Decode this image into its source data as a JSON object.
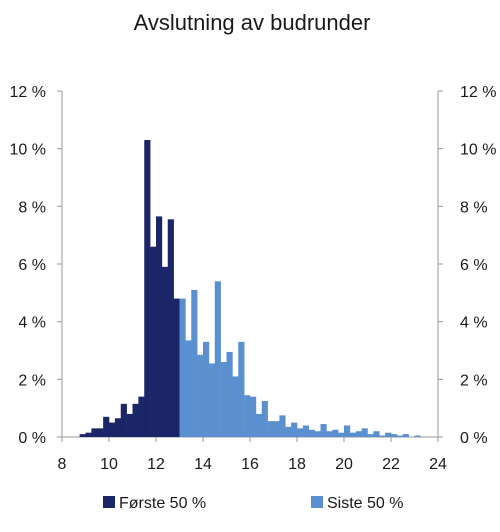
{
  "chart_data": {
    "type": "bar",
    "title": "Avslutning av budrunder",
    "xlabel": "",
    "ylabel": "",
    "xlim": [
      8,
      24
    ],
    "ylim": [
      0,
      12
    ],
    "bin_width": 0.25,
    "grid": false,
    "legend_position": "bottom",
    "x_ticks": [
      "8",
      "10",
      "12",
      "14",
      "16",
      "18",
      "20",
      "22",
      "24"
    ],
    "y_ticks": [
      "0 %",
      "2 %",
      "4 %",
      "6 %",
      "8 %",
      "10 %",
      "12 %"
    ],
    "series": [
      {
        "name": "Første 50 %",
        "color": "#1b2668",
        "x": [
          8.5,
          8.75,
          9.0,
          9.25,
          9.5,
          9.75,
          10.0,
          10.25,
          10.5,
          10.75,
          11.0,
          11.25,
          11.5,
          11.75,
          12.0,
          12.25,
          12.5,
          12.75,
          13.0
        ],
        "values": [
          0.0,
          0.1,
          0.15,
          0.3,
          0.3,
          0.7,
          0.5,
          0.65,
          1.15,
          0.8,
          1.15,
          1.4,
          10.3,
          6.6,
          7.65,
          5.9,
          7.55,
          4.8,
          0.0
        ]
      },
      {
        "name": "Siste 50 %",
        "color": "#5b90d0",
        "x": [
          13.0,
          13.25,
          13.5,
          13.75,
          14.0,
          14.25,
          14.5,
          14.75,
          15.0,
          15.25,
          15.5,
          15.75,
          16.0,
          16.25,
          16.5,
          16.75,
          17.0,
          17.25,
          17.5,
          17.75,
          18.0,
          18.25,
          18.5,
          18.75,
          19.0,
          19.25,
          19.5,
          19.75,
          20.0,
          20.25,
          20.5,
          20.75,
          21.0,
          21.25,
          21.5,
          21.75,
          22.0,
          22.25,
          22.5,
          22.75,
          23.0,
          23.25,
          23.5,
          23.75
        ],
        "values": [
          4.8,
          3.35,
          5.1,
          2.85,
          3.3,
          2.55,
          5.4,
          2.6,
          2.95,
          2.1,
          3.3,
          1.45,
          1.4,
          0.8,
          1.25,
          0.55,
          0.55,
          0.75,
          0.35,
          0.5,
          0.3,
          0.4,
          0.25,
          0.2,
          0.45,
          0.2,
          0.25,
          0.15,
          0.4,
          0.15,
          0.2,
          0.3,
          0.1,
          0.2,
          0.05,
          0.15,
          0.1,
          0.05,
          0.1,
          0.0,
          0.05,
          0.0,
          0.0,
          0.0
        ]
      }
    ]
  }
}
